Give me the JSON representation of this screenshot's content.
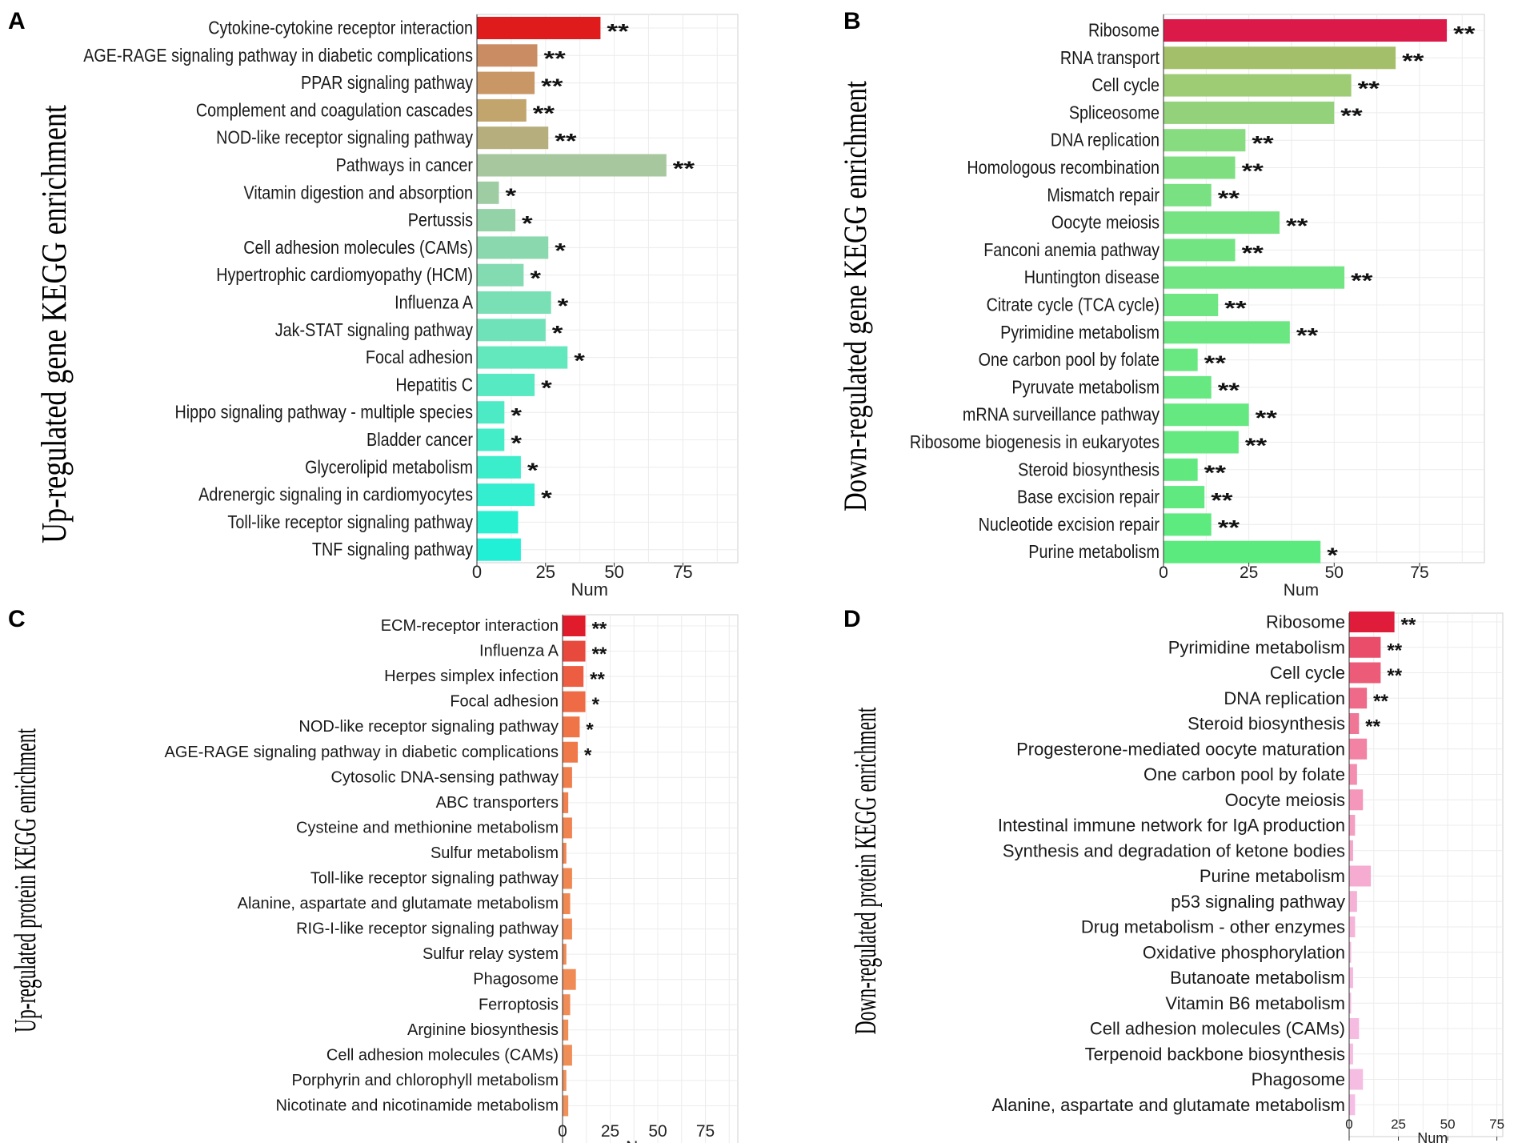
{
  "chart_data": [
    {
      "panel": "A",
      "type": "bar",
      "orientation": "horizontal",
      "ylabel": "Up-regulated gene KEGG enrichment",
      "xlabel": "Num",
      "xticks": [
        "0",
        "25",
        "50",
        "75"
      ],
      "xlim": [
        0,
        95
      ],
      "grid": true,
      "categories": [
        "Cytokine-cytokine receptor interaction",
        "AGE-RAGE signaling pathway in diabetic complications",
        "PPAR signaling pathway",
        "Complement and coagulation cascades",
        "NOD-like receptor signaling pathway",
        "Pathways in cancer",
        "Vitamin digestion and absorption",
        "Pertussis",
        "Cell adhesion molecules (CAMs)",
        "Hypertrophic cardiomyopathy (HCM)",
        "Influenza A",
        "Jak-STAT signaling pathway",
        "Focal adhesion",
        "Hepatitis C",
        "Hippo signaling pathway - multiple species",
        "Bladder cancer",
        "Glycerolipid metabolism",
        "Adrenergic signaling in cardiomyocytes",
        "Toll-like receptor signaling pathway",
        "TNF signaling pathway"
      ],
      "values": [
        45,
        22,
        21,
        18,
        26,
        69,
        8,
        14,
        26,
        17,
        27,
        25,
        33,
        21,
        10,
        10,
        16,
        21,
        15,
        16
      ],
      "significance": [
        "**",
        "**",
        "**",
        "**",
        "**",
        "**",
        "*",
        "*",
        "*",
        "*",
        "*",
        "*",
        "*",
        "*",
        "*",
        "*",
        "*",
        "*",
        "",
        ""
      ],
      "colors": [
        "#e01b1b",
        "#c98c63",
        "#c99665",
        "#c1a56d",
        "#b6ae7c",
        "#a7c89e",
        "#9fcda3",
        "#94d3a8",
        "#8ad8ad",
        "#82dbb1",
        "#79dfb5",
        "#6fe2b9",
        "#63e7bd",
        "#57e9c1",
        "#4cebc5",
        "#43edc8",
        "#3aeecb",
        "#33efcf",
        "#2af0d2",
        "#22f0d6"
      ]
    },
    {
      "panel": "B",
      "type": "bar",
      "orientation": "horizontal",
      "ylabel": "Down-regulated gene KEGG enrichment",
      "xlabel": "Num",
      "xticks": [
        "0",
        "25",
        "50",
        "75"
      ],
      "xlim": [
        0,
        94
      ],
      "grid": true,
      "categories": [
        "Ribosome",
        "RNA transport",
        "Cell cycle",
        "Spliceosome",
        "DNA replication",
        "Homologous recombination",
        "Mismatch repair",
        "Oocyte meiosis",
        "Fanconi anemia pathway",
        "Huntington disease",
        "Citrate cycle (TCA cycle)",
        "Pyrimidine metabolism",
        "One carbon pool by folate",
        "Pyruvate metabolism",
        "mRNA surveillance pathway",
        "Ribosome biogenesis in eukaryotes",
        "Steroid biosynthesis",
        "Base excision repair",
        "Nucleotide excision repair",
        "Purine metabolism"
      ],
      "values": [
        83,
        68,
        55,
        50,
        24,
        21,
        14,
        34,
        21,
        53,
        16,
        37,
        10,
        14,
        25,
        22,
        10,
        12,
        14,
        46
      ],
      "significance": [
        "**",
        "**",
        "**",
        "**",
        "**",
        "**",
        "**",
        "**",
        "**",
        "**",
        "**",
        "**",
        "**",
        "**",
        "**",
        "**",
        "**",
        "**",
        "**",
        "*"
      ],
      "colors": [
        "#dc1a4a",
        "#a4bf6a",
        "#9dcc75",
        "#93d27a",
        "#86dc7e",
        "#7fdf80",
        "#7ae182",
        "#76e382",
        "#72e482",
        "#70e582",
        "#6ee682",
        "#6be782",
        "#69e781",
        "#67e881",
        "#65e880",
        "#63e980",
        "#61e97f",
        "#5fe97f",
        "#5dea7e",
        "#5bea7e"
      ]
    },
    {
      "panel": "C",
      "type": "bar",
      "orientation": "horizontal",
      "ylabel": "Up-regulated protein KEGG enrichment",
      "xlabel": "Num",
      "xticks": [
        "0",
        "25",
        "50",
        "75"
      ],
      "xlim": [
        0,
        92
      ],
      "grid": true,
      "categories": [
        "ECM-receptor interaction",
        "Influenza A",
        "Herpes simplex infection",
        "Focal adhesion",
        "NOD-like receptor signaling pathway",
        "AGE-RAGE signaling pathway in diabetic complications",
        "Cytosolic DNA-sensing pathway",
        "ABC transporters",
        "Cysteine and methionine metabolism",
        "Sulfur metabolism",
        "Toll-like receptor signaling pathway",
        "Alanine, aspartate and glutamate metabolism",
        "RIG-I-like receptor signaling pathway",
        "Sulfur relay system",
        "Phagosome",
        "Ferroptosis",
        "Arginine biosynthesis",
        "Cell adhesion molecules (CAMs)",
        "Porphyrin and chlorophyll metabolism",
        "Nicotinate and nicotinamide metabolism"
      ],
      "values": [
        12,
        12,
        11,
        12,
        9,
        8,
        5,
        3,
        5,
        2,
        5,
        4,
        5,
        2,
        7,
        4,
        3,
        5,
        2,
        3
      ],
      "significance": [
        "**",
        "**",
        "**",
        "*",
        "*",
        "*",
        "",
        "",
        "",
        "",
        "",
        "",
        "",
        "",
        "",
        "",
        "",
        "",
        "",
        ""
      ],
      "colors": [
        "#e01c2c",
        "#e8493d",
        "#ec5d42",
        "#ee6b46",
        "#ef7448",
        "#f0794a",
        "#f07d4c",
        "#f0804d",
        "#f0834f",
        "#f08550",
        "#f08751",
        "#f08852",
        "#f08953",
        "#f08a54",
        "#f08b55",
        "#f08c56",
        "#f08d57",
        "#f08e58",
        "#f08f59",
        "#f0905a"
      ]
    },
    {
      "panel": "D",
      "type": "bar",
      "orientation": "horizontal",
      "ylabel": "Down-regulated protein KEGG enrichment",
      "xlabel": "Num",
      "xticks": [
        "0",
        "25",
        "50",
        "75"
      ],
      "xlim": [
        0,
        78
      ],
      "grid": true,
      "categories": [
        "Ribosome",
        "Pyrimidine metabolism",
        "Cell cycle",
        "DNA replication",
        "Steroid biosynthesis",
        "Progesterone-mediated oocyte maturation",
        "One carbon pool by folate",
        "Oocyte meiosis",
        "Intestinal immune network for IgA production",
        "Synthesis and degradation of ketone bodies",
        "Purine metabolism",
        "p53 signaling pathway",
        "Drug metabolism - other enzymes",
        "Oxidative phosphorylation",
        "Butanoate metabolism",
        "Vitamin B6 metabolism",
        "Cell adhesion molecules (CAMs)",
        "Terpenoid backbone biosynthesis",
        "Phagosome",
        "Alanine, aspartate and glutamate metabolism"
      ],
      "values": [
        23,
        16,
        16,
        9,
        5,
        9,
        4,
        7,
        3,
        2,
        11,
        4,
        3,
        1,
        2,
        1,
        5,
        2,
        7,
        3
      ],
      "significance": [
        "**",
        "**",
        "**",
        "**",
        "**",
        "",
        "",
        "",
        "",
        "",
        "",
        "",
        "",
        "",
        "",
        "",
        "",
        "",
        "",
        ""
      ],
      "colors": [
        "#df1c3a",
        "#ea4d6a",
        "#ec5b78",
        "#ee6a88",
        "#f07696",
        "#f283a4",
        "#f38eb0",
        "#f497ba",
        "#f59fc3",
        "#f5a6cb",
        "#f6acd1",
        "#f6b1d6",
        "#f6b4d9",
        "#f6b6dc",
        "#f6b8de",
        "#f6bae0",
        "#f6bbe1",
        "#f6bce2",
        "#f6bde3",
        "#f6bee4"
      ]
    }
  ]
}
